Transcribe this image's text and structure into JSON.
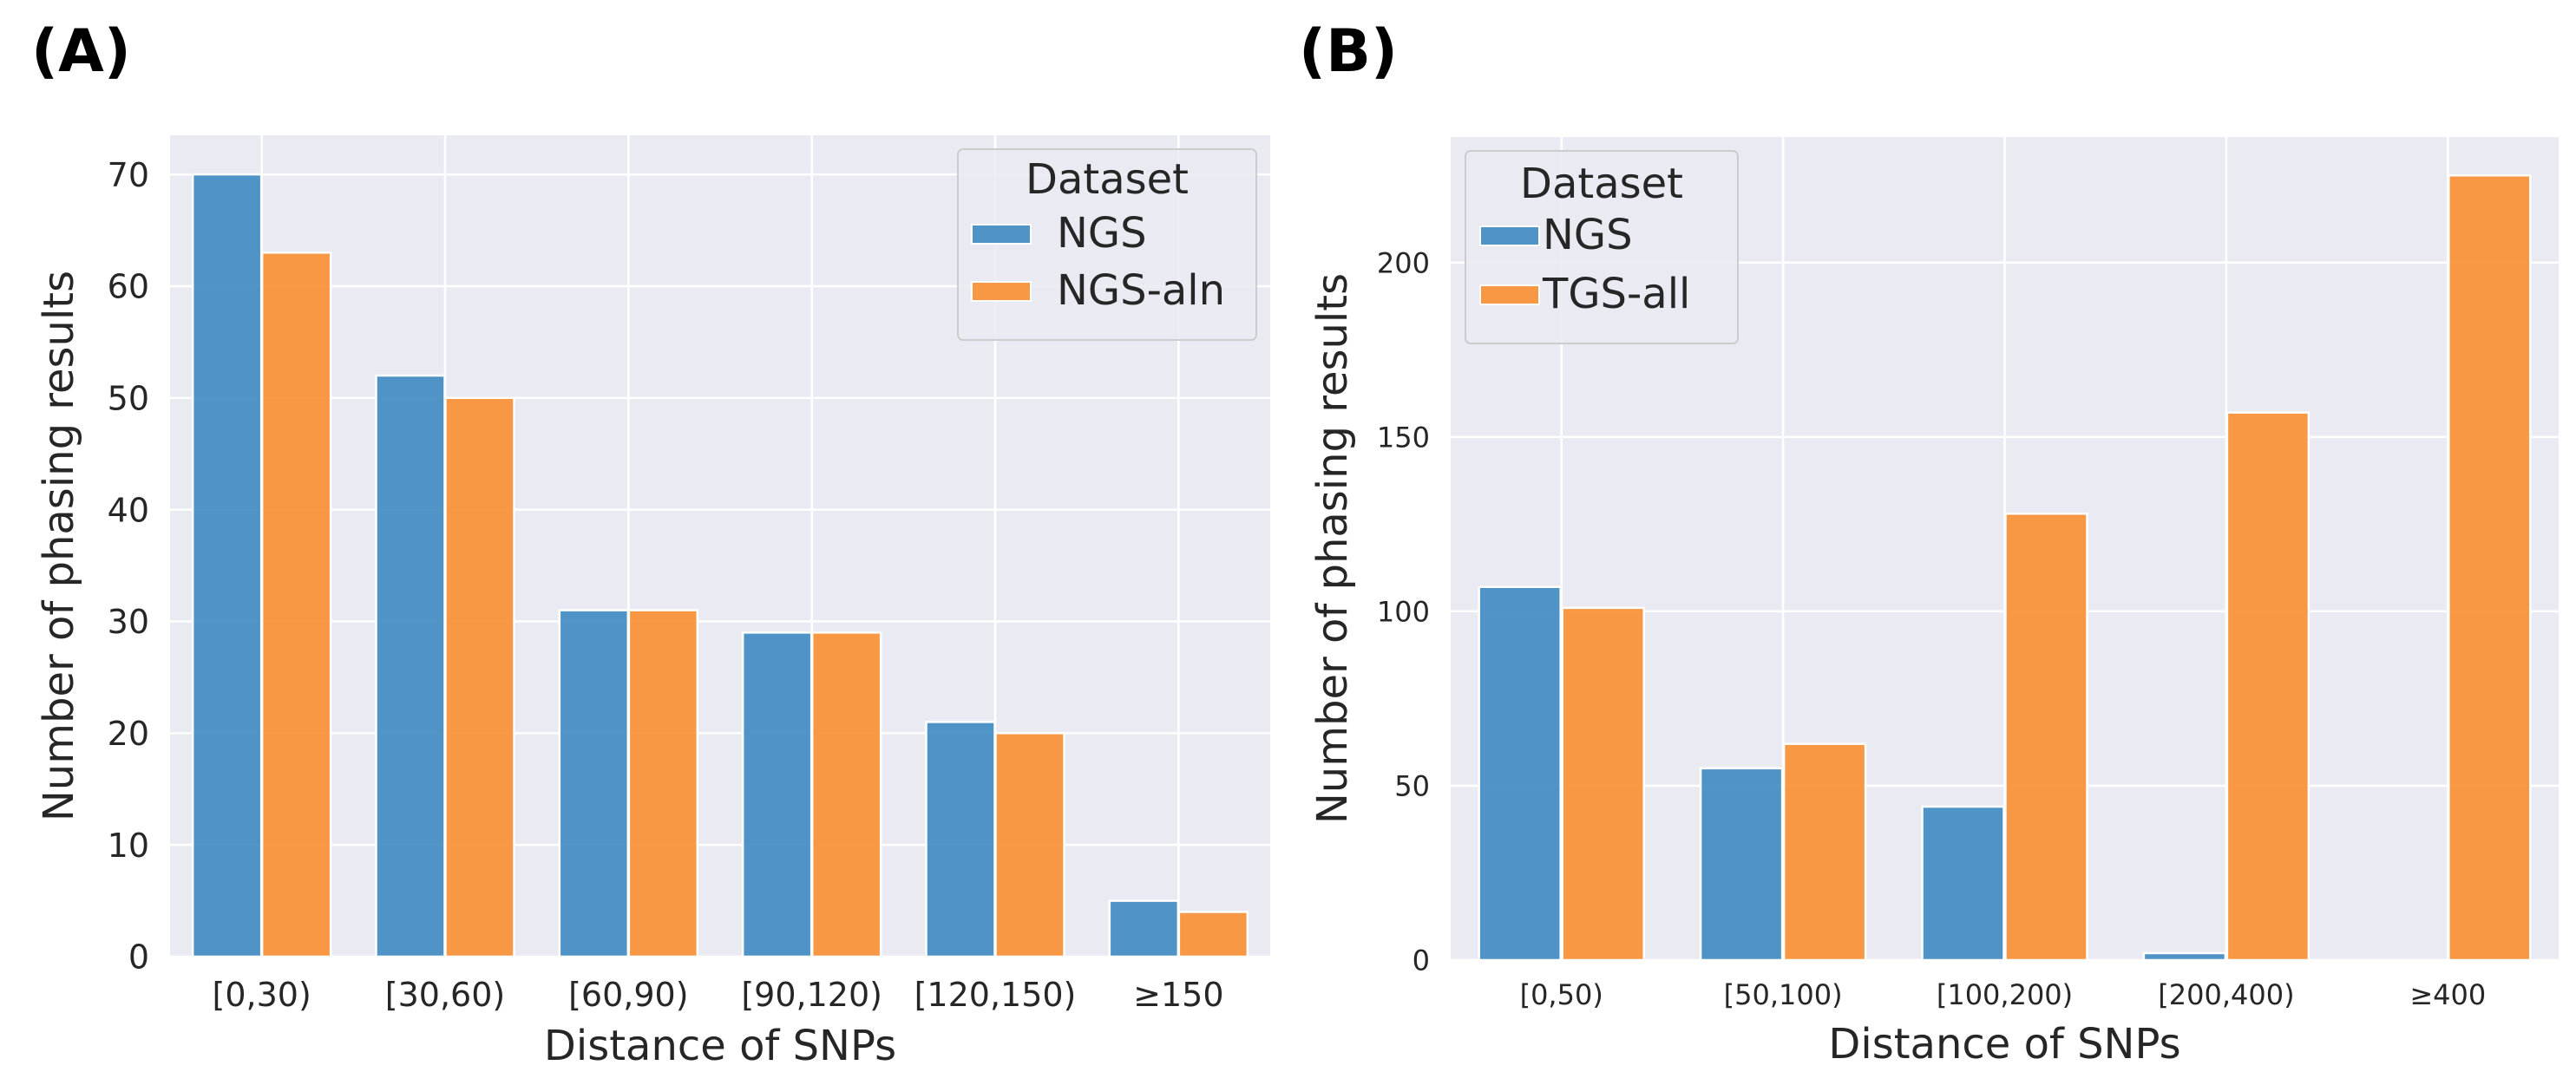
{
  "colors": {
    "background": "#eaeaf2",
    "grid": "#ffffff",
    "ngs": "#3a87c0",
    "orange": "#f98b2b",
    "text": "#262626"
  },
  "chart_data": [
    {
      "type": "bar",
      "panel_label": "(A)",
      "title": "",
      "xlabel": "Distance of SNPs",
      "ylabel": "Number of phasing results",
      "categories": [
        "[0,30)",
        "[30,60)",
        "[60,90)",
        "[90,120)",
        "[120,150)",
        "≥150"
      ],
      "series": [
        {
          "name": "NGS",
          "values": [
            70,
            52,
            31,
            29,
            21,
            5
          ]
        },
        {
          "name": "NGS-aln",
          "values": [
            63,
            50,
            31,
            29,
            20,
            4
          ]
        }
      ],
      "ylim": [
        0,
        73.5
      ],
      "yticks": [
        0,
        10,
        20,
        30,
        40,
        50,
        60,
        70
      ],
      "legend_title": "Dataset",
      "legend_position": "top-right",
      "grid": true
    },
    {
      "type": "bar",
      "panel_label": "(B)",
      "title": "",
      "xlabel": "Distance of SNPs",
      "ylabel": "Number of phasing results",
      "categories": [
        "[0,50)",
        "[50,100)",
        "[100,200)",
        "[200,400)",
        "≥400"
      ],
      "series": [
        {
          "name": "NGS",
          "values": [
            107,
            55,
            44,
            2,
            0
          ]
        },
        {
          "name": "TGS-all",
          "values": [
            101,
            62,
            128,
            157,
            225
          ]
        }
      ],
      "ylim": [
        0,
        236
      ],
      "yticks": [
        0,
        50,
        100,
        150,
        200
      ],
      "legend_title": "Dataset",
      "legend_position": "top-left",
      "grid": true
    }
  ]
}
